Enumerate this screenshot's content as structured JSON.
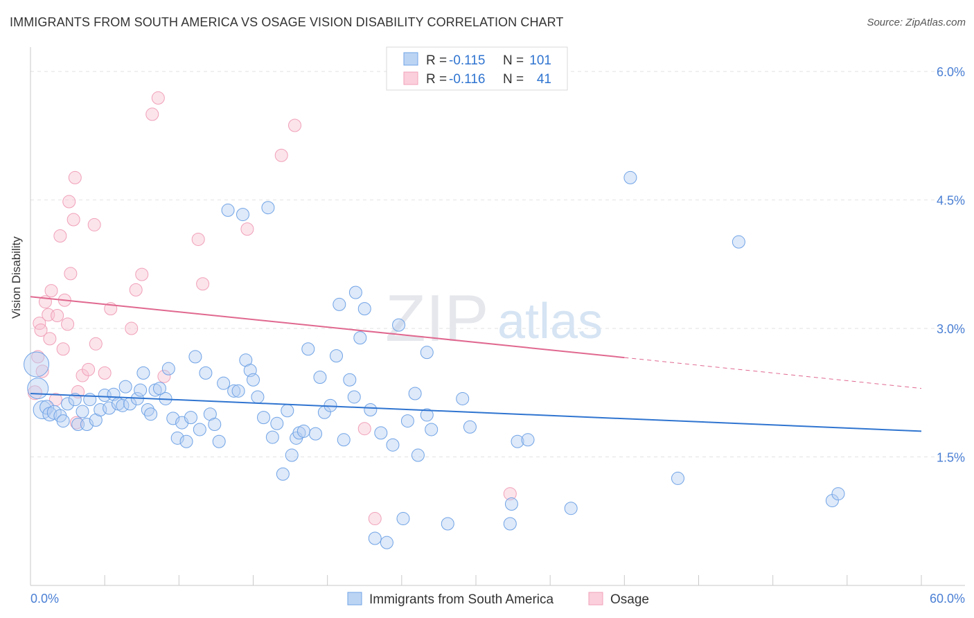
{
  "header": {
    "title": "IMMIGRANTS FROM SOUTH AMERICA VS OSAGE VISION DISABILITY CORRELATION CHART",
    "source": "Source: ZipAtlas.com"
  },
  "watermark": {
    "zip": "ZIP",
    "atlas": "atlas"
  },
  "legend_top": {
    "r_label": "R = ",
    "n_label": "N = ",
    "rows": [
      {
        "r": "-0.115",
        "n": "101"
      },
      {
        "r": "-0.116",
        "n": "41"
      }
    ]
  },
  "chart_data": {
    "type": "scatter",
    "title": "IMMIGRANTS FROM SOUTH AMERICA VS OSAGE VISION DISABILITY CORRELATION CHART",
    "xlabel": "",
    "ylabel": "Vision Disability",
    "xlim": [
      0,
      60
    ],
    "ylim": [
      0,
      6.3
    ],
    "x_tick_labels": [
      "0.0%",
      "60.0%"
    ],
    "y_ticks": [
      1.5,
      3.0,
      4.5,
      6.0
    ],
    "y_tick_labels": [
      "1.5%",
      "3.0%",
      "4.5%",
      "6.0%"
    ],
    "grid": true,
    "legend_position": "bottom-center",
    "colors": {
      "blue": "#6fa3e6",
      "blue_line": "#2f74d0",
      "pink": "#f0a0b8",
      "pink_line": "#e0688f",
      "tick_label": "#4a7fd4"
    },
    "series": [
      {
        "name": "Immigrants from South America",
        "r": -0.115,
        "n": 101,
        "trend": {
          "x0": 0,
          "y0": 2.24,
          "x1": 60,
          "y1": 1.8
        },
        "points": [
          [
            0.4,
            2.58,
            18
          ],
          [
            0.5,
            2.3,
            15
          ],
          [
            0.8,
            2.05,
            13
          ],
          [
            1.1,
            2.08,
            10
          ],
          [
            1.3,
            2.0,
            10
          ],
          [
            1.6,
            2.02,
            10
          ],
          [
            2.0,
            1.98,
            9
          ],
          [
            2.2,
            1.92,
            9
          ],
          [
            2.5,
            2.12,
            9
          ],
          [
            3.0,
            2.17,
            9
          ],
          [
            3.2,
            1.88,
            9
          ],
          [
            3.5,
            2.03,
            9
          ],
          [
            3.8,
            1.88,
            9
          ],
          [
            4.0,
            2.17,
            9
          ],
          [
            4.4,
            1.93,
            9
          ],
          [
            4.7,
            2.05,
            9
          ],
          [
            5.0,
            2.22,
            9
          ],
          [
            5.3,
            2.07,
            9
          ],
          [
            5.6,
            2.23,
            9
          ],
          [
            5.9,
            2.12,
            9
          ],
          [
            6.2,
            2.1,
            9
          ],
          [
            6.4,
            2.32,
            9
          ],
          [
            6.7,
            2.12,
            9
          ],
          [
            7.2,
            2.18,
            9
          ],
          [
            7.4,
            2.28,
            9
          ],
          [
            7.6,
            2.48,
            9
          ],
          [
            7.9,
            2.05,
            9
          ],
          [
            8.1,
            2.0,
            9
          ],
          [
            8.4,
            2.28,
            9
          ],
          [
            8.7,
            2.3,
            9
          ],
          [
            9.1,
            2.18,
            9
          ],
          [
            9.3,
            2.53,
            9
          ],
          [
            9.6,
            1.95,
            9
          ],
          [
            9.9,
            1.72,
            9
          ],
          [
            10.2,
            1.9,
            9
          ],
          [
            10.5,
            1.68,
            9
          ],
          [
            10.8,
            1.96,
            9
          ],
          [
            11.1,
            2.67,
            9
          ],
          [
            11.4,
            1.82,
            9
          ],
          [
            11.8,
            2.48,
            9
          ],
          [
            12.1,
            2.0,
            9
          ],
          [
            12.4,
            1.88,
            9
          ],
          [
            12.7,
            1.68,
            9
          ],
          [
            13.0,
            2.36,
            9
          ],
          [
            13.3,
            4.38,
            9
          ],
          [
            13.7,
            2.27,
            9
          ],
          [
            14.0,
            2.27,
            9
          ],
          [
            14.3,
            4.33,
            9
          ],
          [
            14.5,
            2.63,
            9
          ],
          [
            14.8,
            2.51,
            9
          ],
          [
            15.0,
            2.4,
            9
          ],
          [
            15.3,
            2.2,
            9
          ],
          [
            15.7,
            1.96,
            9
          ],
          [
            16.0,
            4.41,
            9
          ],
          [
            16.3,
            1.73,
            9
          ],
          [
            16.6,
            1.89,
            9
          ],
          [
            17.0,
            1.3,
            9
          ],
          [
            17.3,
            2.04,
            9
          ],
          [
            17.6,
            1.52,
            9
          ],
          [
            17.9,
            1.72,
            9
          ],
          [
            18.1,
            1.78,
            9
          ],
          [
            18.4,
            1.8,
            9
          ],
          [
            18.7,
            2.76,
            9
          ],
          [
            19.2,
            1.77,
            9
          ],
          [
            19.5,
            2.43,
            9
          ],
          [
            19.8,
            2.02,
            9
          ],
          [
            20.2,
            2.1,
            9
          ],
          [
            20.6,
            2.68,
            9
          ],
          [
            20.8,
            3.28,
            9
          ],
          [
            21.1,
            1.7,
            9
          ],
          [
            21.5,
            2.4,
            9
          ],
          [
            21.8,
            2.2,
            9
          ],
          [
            21.9,
            3.42,
            9
          ],
          [
            22.2,
            2.89,
            9
          ],
          [
            22.5,
            3.23,
            9
          ],
          [
            22.9,
            2.05,
            9
          ],
          [
            23.2,
            0.55,
            9
          ],
          [
            23.6,
            1.78,
            9
          ],
          [
            24.0,
            0.5,
            9
          ],
          [
            24.4,
            1.64,
            9
          ],
          [
            24.8,
            3.04,
            9
          ],
          [
            25.1,
            0.78,
            9
          ],
          [
            25.4,
            1.92,
            9
          ],
          [
            25.9,
            2.24,
            9
          ],
          [
            26.1,
            1.52,
            9
          ],
          [
            26.7,
            2.72,
            9
          ],
          [
            27.0,
            1.82,
            9
          ],
          [
            28.1,
            0.72,
            9
          ],
          [
            29.1,
            2.18,
            9
          ],
          [
            29.6,
            1.85,
            9
          ],
          [
            32.3,
            0.72,
            9
          ],
          [
            32.4,
            0.95,
            9
          ],
          [
            32.8,
            1.68,
            9
          ],
          [
            33.5,
            1.7,
            9
          ],
          [
            40.4,
            4.76,
            9
          ],
          [
            43.6,
            1.25,
            9
          ],
          [
            47.7,
            4.01,
            9
          ],
          [
            54.0,
            0.99,
            9
          ],
          [
            54.4,
            1.07,
            9
          ],
          [
            36.4,
            0.9,
            9
          ],
          [
            26.7,
            1.99,
            9
          ]
        ]
      },
      {
        "name": "Osage",
        "r": -0.116,
        "n": 41,
        "trend": {
          "x0": 0,
          "y0": 3.37,
          "x1": 40,
          "y1": 2.66,
          "dash_x1": 60,
          "dash_y1": 2.3
        },
        "points": [
          [
            0.3,
            2.25,
            10
          ],
          [
            0.5,
            2.67,
            9
          ],
          [
            0.6,
            3.06,
            9
          ],
          [
            0.7,
            2.98,
            9
          ],
          [
            0.8,
            2.5,
            9
          ],
          [
            1.0,
            3.31,
            9
          ],
          [
            1.2,
            3.16,
            9
          ],
          [
            1.3,
            2.88,
            9
          ],
          [
            1.4,
            3.44,
            9
          ],
          [
            1.7,
            2.17,
            9
          ],
          [
            1.8,
            3.15,
            9
          ],
          [
            2.0,
            4.08,
            9
          ],
          [
            2.2,
            2.76,
            9
          ],
          [
            2.3,
            3.33,
            9
          ],
          [
            2.5,
            3.05,
            9
          ],
          [
            2.6,
            4.48,
            9
          ],
          [
            2.7,
            3.64,
            9
          ],
          [
            2.9,
            4.27,
            9
          ],
          [
            3.0,
            4.76,
            9
          ],
          [
            3.1,
            1.9,
            9
          ],
          [
            3.2,
            2.26,
            9
          ],
          [
            3.5,
            2.45,
            9
          ],
          [
            3.9,
            2.52,
            9
          ],
          [
            4.3,
            4.21,
            9
          ],
          [
            4.4,
            2.82,
            9
          ],
          [
            5.0,
            2.48,
            9
          ],
          [
            5.4,
            3.23,
            9
          ],
          [
            6.8,
            3.0,
            9
          ],
          [
            7.1,
            3.45,
            9
          ],
          [
            7.5,
            3.63,
            9
          ],
          [
            8.2,
            5.5,
            9
          ],
          [
            8.6,
            5.69,
            9
          ],
          [
            9.0,
            2.44,
            9
          ],
          [
            11.3,
            4.04,
            9
          ],
          [
            11.6,
            3.52,
            9
          ],
          [
            14.6,
            4.16,
            9
          ],
          [
            16.9,
            5.02,
            9
          ],
          [
            17.8,
            5.37,
            9
          ],
          [
            22.5,
            1.83,
            9
          ],
          [
            23.2,
            0.78,
            9
          ],
          [
            32.3,
            1.07,
            9
          ]
        ]
      }
    ]
  }
}
